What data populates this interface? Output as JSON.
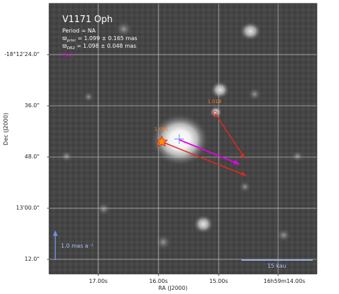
{
  "panel": {
    "title": "V1171 Oph",
    "period_line": "Period = NA",
    "prior_prefix": "ϖ",
    "prior_sub": "prior",
    "prior_value": " = 1.099 ± 0.165 mas",
    "dr2_prefix": "ϖ",
    "dr2_sub": "DR2",
    "dr2_value": " = 1.098 ± 0.048 mas",
    "mu_prefix": "μ",
    "mu_sub": "DR2"
  },
  "axes": {
    "xlabel": "RA (J2000)",
    "ylabel": "Dec (J2000)",
    "yticks": [
      "-18°12'24.0\"",
      "36.0\"",
      "48.0\"",
      "13'00.0\"",
      "12.0\""
    ],
    "xticks": [
      "17.00s",
      "16.00s",
      "15.00s",
      "16h59m14.00s"
    ]
  },
  "annotations": {
    "target_parallax": "1.095",
    "neighbor_parallax": "1.018",
    "scale_arrow_label": "1.0 mas a⁻¹",
    "scale_bar_label": "15 kau"
  },
  "colors": {
    "title": "#ffffff",
    "text": "#ffffff",
    "proper_motion": "#e600e6",
    "star_motion": "#e8261e",
    "label_orange": "#ff7a1a",
    "target_star": "#ff8c00",
    "scale_arrow": "#6f8fe0",
    "scale_bar": "#a8c4ff",
    "grid": "#d8d8d8"
  }
}
